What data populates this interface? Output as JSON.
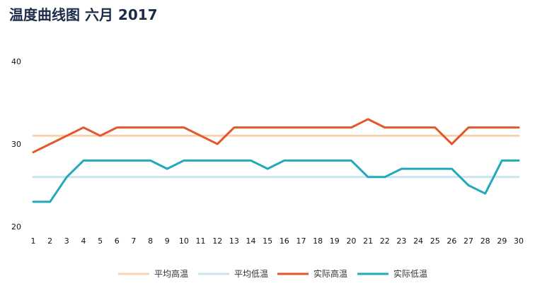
{
  "title": "温度曲线图 六月 2017",
  "chart_data": {
    "type": "line",
    "title": "温度曲线图 六月 2017",
    "xlabel": "",
    "ylabel": "",
    "x": [
      1,
      2,
      3,
      4,
      5,
      6,
      7,
      8,
      9,
      10,
      11,
      12,
      13,
      14,
      15,
      16,
      17,
      18,
      19,
      20,
      21,
      22,
      23,
      24,
      25,
      26,
      27,
      28,
      29,
      30
    ],
    "ylim": [
      20,
      40
    ],
    "yticks": [
      20,
      30,
      40
    ],
    "grid": false,
    "legend_position": "bottom",
    "series": [
      {
        "name": "平均高温",
        "color": "#f9d2ae",
        "values": [
          31,
          31,
          31,
          31,
          31,
          31,
          31,
          31,
          31,
          31,
          31,
          31,
          31,
          31,
          31,
          31,
          31,
          31,
          31,
          31,
          31,
          31,
          31,
          31,
          31,
          31,
          31,
          31,
          31,
          31
        ]
      },
      {
        "name": "平均低温",
        "color": "#c9e6ef",
        "values": [
          26,
          26,
          26,
          26,
          26,
          26,
          26,
          26,
          26,
          26,
          26,
          26,
          26,
          26,
          26,
          26,
          26,
          26,
          26,
          26,
          26,
          26,
          26,
          26,
          26,
          26,
          26,
          26,
          26,
          26
        ]
      },
      {
        "name": "实际高温",
        "color": "#e2582c",
        "values": [
          29,
          30,
          31,
          32,
          31,
          32,
          32,
          32,
          32,
          32,
          31,
          30,
          32,
          32,
          32,
          32,
          32,
          32,
          32,
          32,
          33,
          32,
          32,
          32,
          32,
          30,
          32,
          32,
          32,
          32
        ]
      },
      {
        "name": "实际低温",
        "color": "#22a9ba",
        "values": [
          23,
          23,
          26,
          28,
          28,
          28,
          28,
          28,
          27,
          28,
          28,
          28,
          28,
          28,
          27,
          28,
          28,
          28,
          28,
          28,
          26,
          26,
          27,
          27,
          27,
          27,
          25,
          24,
          28,
          28
        ]
      }
    ]
  }
}
